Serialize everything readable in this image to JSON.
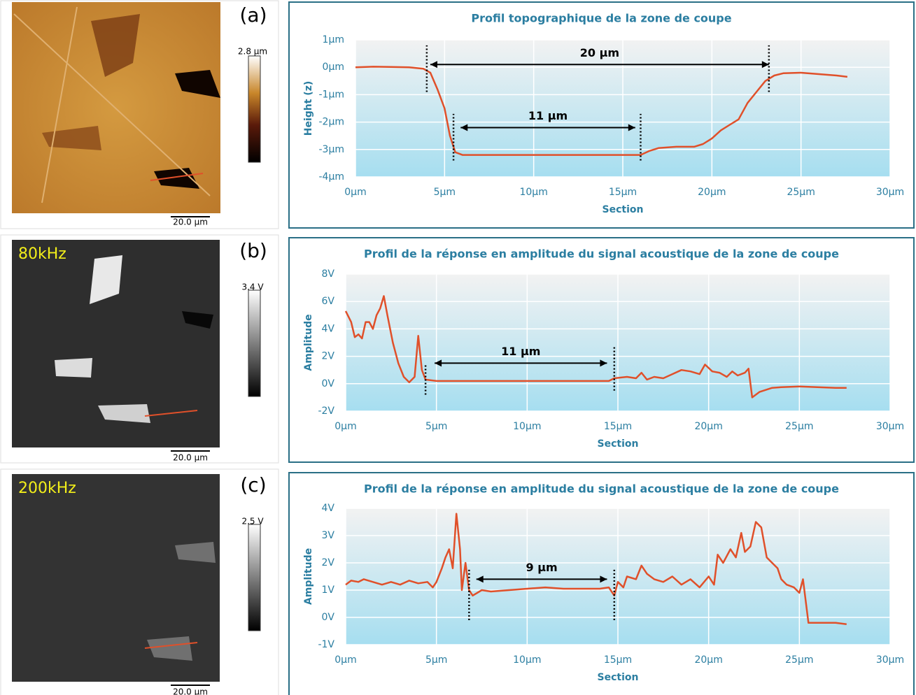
{
  "panels": [
    {
      "label": "(a)",
      "colorbar_max": "2.8 µm",
      "scale_bar": "20.0 µm"
    },
    {
      "label": "(b)",
      "frequency": "80kHz",
      "colorbar_max": "3.4 V",
      "scale_bar": "20.0 µm"
    },
    {
      "label": "(c)",
      "frequency": "200kHz",
      "colorbar_max": "2.5 V",
      "scale_bar": "20.0 µm"
    }
  ],
  "chart_data": [
    {
      "type": "line",
      "title": "Profil topographique de la zone de coupe",
      "x_label": "Section",
      "y_label": "Height (z)",
      "color": "#e0502a",
      "grid": true,
      "xlim": [
        0,
        30
      ],
      "xticks": [
        {
          "value": 0,
          "label": "0µm"
        },
        {
          "value": 5,
          "label": "5µm"
        },
        {
          "value": 10,
          "label": "10µm"
        },
        {
          "value": 15,
          "label": "15µm"
        },
        {
          "value": 20,
          "label": "20µm"
        },
        {
          "value": 25,
          "label": "25µm"
        },
        {
          "value": 30,
          "label": "30µm"
        }
      ],
      "ylim": [
        -4,
        1
      ],
      "yticks": [
        {
          "value": -4,
          "label": "-4µm"
        },
        {
          "value": -3,
          "label": "-3µm"
        },
        {
          "value": -2,
          "label": "-2µm"
        },
        {
          "value": -1,
          "label": "-1µm"
        },
        {
          "value": 0,
          "label": "0µm"
        },
        {
          "value": 1,
          "label": "1µm"
        }
      ],
      "x": [
        0,
        1,
        2,
        3,
        3.8,
        4.2,
        4.6,
        5,
        5.3,
        5.6,
        6,
        10,
        16,
        16.5,
        17,
        18,
        19,
        19.5,
        20,
        20.5,
        21,
        21.5,
        22,
        22.5,
        23,
        23.5,
        24,
        25,
        26,
        27,
        27.6
      ],
      "values": [
        0,
        0.02,
        0.01,
        0,
        -0.05,
        -0.2,
        -0.8,
        -1.5,
        -2.5,
        -3.1,
        -3.2,
        -3.2,
        -3.2,
        -3.05,
        -2.95,
        -2.9,
        -2.9,
        -2.8,
        -2.6,
        -2.3,
        -2.1,
        -1.9,
        -1.3,
        -0.9,
        -0.5,
        -0.3,
        -0.22,
        -0.2,
        -0.25,
        -0.3,
        -0.35
      ],
      "annotations": [
        {
          "text": "20 µm",
          "x1": 4.2,
          "x2": 23.2,
          "y": 0.1,
          "guides": [
            {
              "x": 4,
              "y1": -0.9,
              "y2": 0.8
            },
            {
              "x": 23.2,
              "y1": -0.9,
              "y2": 0.8
            }
          ]
        },
        {
          "text": "11 µm",
          "x1": 5.9,
          "x2": 15.7,
          "y": -2.2,
          "guides": [
            {
              "x": 5.5,
              "y1": -3.4,
              "y2": -1.7
            },
            {
              "x": 16,
              "y1": -3.4,
              "y2": -1.7
            }
          ]
        }
      ]
    },
    {
      "type": "line",
      "title": "Profil de la réponse en amplitude du signal acoustique de la zone de coupe",
      "x_label": "Section",
      "y_label": "Amplitude",
      "color": "#e0502a",
      "grid": true,
      "xlim": [
        0,
        30
      ],
      "xticks": [
        {
          "value": 0,
          "label": "0µm"
        },
        {
          "value": 5,
          "label": "5µm"
        },
        {
          "value": 10,
          "label": "10µm"
        },
        {
          "value": 15,
          "label": "15µm"
        },
        {
          "value": 20,
          "label": "20µm"
        },
        {
          "value": 25,
          "label": "25µm"
        },
        {
          "value": 30,
          "label": "30µm"
        }
      ],
      "ylim": [
        -2,
        8
      ],
      "yticks": [
        {
          "value": -2,
          "label": "-2V"
        },
        {
          "value": 0,
          "label": "0V"
        },
        {
          "value": 2,
          "label": "2V"
        },
        {
          "value": 4,
          "label": "4V"
        },
        {
          "value": 6,
          "label": "6V"
        },
        {
          "value": 8,
          "label": "8V"
        }
      ],
      "x": [
        0,
        0.3,
        0.5,
        0.7,
        0.9,
        1.1,
        1.3,
        1.5,
        1.7,
        1.9,
        2.1,
        2.3,
        2.6,
        2.9,
        3.2,
        3.5,
        3.8,
        4,
        4.2,
        4.4,
        5,
        8,
        11,
        14.5,
        14.8,
        15.5,
        16,
        16.3,
        16.6,
        17,
        17.5,
        18,
        18.5,
        19,
        19.5,
        19.8,
        20.2,
        20.6,
        21,
        21.3,
        21.6,
        22,
        22.2,
        22.4,
        22.8,
        23.5,
        24,
        25,
        26,
        27,
        27.6
      ],
      "values": [
        5.3,
        4.5,
        3.4,
        3.6,
        3.3,
        4.5,
        4.5,
        4,
        5,
        5.5,
        6.4,
        5,
        3,
        1.5,
        0.5,
        0.1,
        0.5,
        3.5,
        1,
        0.3,
        0.2,
        0.2,
        0.2,
        0.2,
        0.4,
        0.5,
        0.4,
        0.8,
        0.3,
        0.5,
        0.4,
        0.7,
        1,
        0.9,
        0.7,
        1.4,
        0.9,
        0.8,
        0.5,
        0.9,
        0.6,
        0.8,
        1.1,
        -1,
        -0.6,
        -0.3,
        -0.25,
        -0.2,
        -0.25,
        -0.3,
        -0.3
      ],
      "annotations": [
        {
          "text": "11 µm",
          "x1": 4.9,
          "x2": 14.4,
          "y": 1.5,
          "guides": [
            {
              "x": 4.4,
              "y1": -0.8,
              "y2": 1.4
            },
            {
              "x": 14.8,
              "y1": -0.5,
              "y2": 2.8
            }
          ]
        }
      ]
    },
    {
      "type": "line",
      "title": "Profil de la réponse en amplitude du signal acoustique de la zone de coupe",
      "x_label": "Section",
      "y_label": "Amplitude",
      "color": "#e0502a",
      "grid": true,
      "xlim": [
        0,
        30
      ],
      "xticks": [
        {
          "value": 0,
          "label": "0µm"
        },
        {
          "value": 5,
          "label": "5µm"
        },
        {
          "value": 10,
          "label": "10µm"
        },
        {
          "value": 15,
          "label": "15µm"
        },
        {
          "value": 20,
          "label": "20µm"
        },
        {
          "value": 25,
          "label": "25µm"
        },
        {
          "value": 30,
          "label": "30µm"
        }
      ],
      "ylim": [
        -1,
        4
      ],
      "yticks": [
        {
          "value": -1,
          "label": "-1V"
        },
        {
          "value": 0,
          "label": "0V"
        },
        {
          "value": 1,
          "label": "1V"
        },
        {
          "value": 2,
          "label": "2V"
        },
        {
          "value": 3,
          "label": "3V"
        },
        {
          "value": 4,
          "label": "4V"
        }
      ],
      "x": [
        0,
        0.3,
        0.7,
        1,
        1.5,
        2,
        2.5,
        3,
        3.5,
        4,
        4.5,
        4.8,
        5,
        5.3,
        5.5,
        5.7,
        5.9,
        6.1,
        6.3,
        6.4,
        6.6,
        6.8,
        7,
        7.5,
        8,
        9,
        10,
        11,
        12,
        13,
        14,
        14.5,
        14.8,
        15,
        15.3,
        15.5,
        16,
        16.3,
        16.6,
        17,
        17.5,
        18,
        18.5,
        19,
        19.5,
        20,
        20.3,
        20.5,
        20.8,
        21.2,
        21.5,
        21.8,
        22,
        22.3,
        22.6,
        22.9,
        23.2,
        23.5,
        23.8,
        24,
        24.3,
        24.7,
        25,
        25.2,
        25.5,
        26,
        27,
        27.6
      ],
      "values": [
        1.2,
        1.35,
        1.3,
        1.4,
        1.3,
        1.2,
        1.3,
        1.2,
        1.35,
        1.25,
        1.3,
        1.1,
        1.3,
        1.8,
        2.2,
        2.5,
        1.8,
        3.8,
        2.5,
        1,
        2,
        1,
        0.8,
        1,
        0.95,
        1,
        1.05,
        1.1,
        1.05,
        1.05,
        1.05,
        1.1,
        0.8,
        1.3,
        1.1,
        1.5,
        1.4,
        1.9,
        1.6,
        1.4,
        1.3,
        1.5,
        1.2,
        1.4,
        1.1,
        1.5,
        1.2,
        2.3,
        2,
        2.5,
        2.2,
        3.1,
        2.4,
        2.6,
        3.5,
        3.3,
        2.2,
        2,
        1.8,
        1.4,
        1.2,
        1.1,
        0.9,
        1.4,
        -0.2,
        -0.2,
        -0.2,
        -0.25
      ],
      "annotations": [
        {
          "text": "9 µm",
          "x1": 7.2,
          "x2": 14.4,
          "y": 1.4,
          "guides": [
            {
              "x": 6.8,
              "y1": -0.1,
              "y2": 1.8
            },
            {
              "x": 14.8,
              "y1": -0.1,
              "y2": 1.8
            }
          ]
        }
      ]
    }
  ]
}
